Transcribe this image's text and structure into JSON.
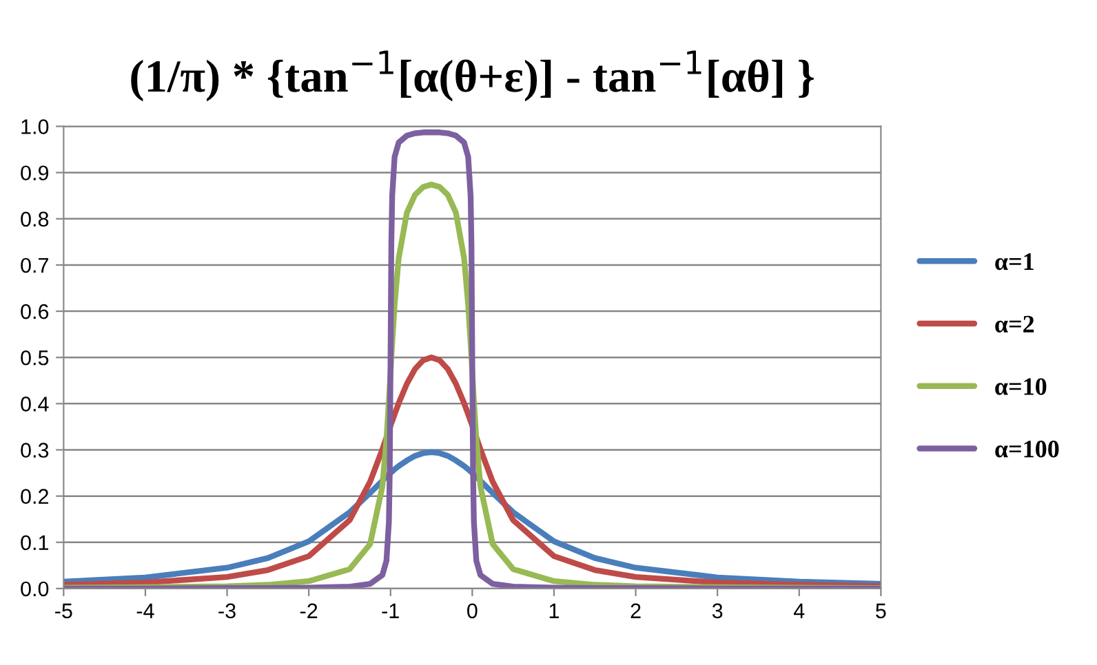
{
  "chart_data": {
    "type": "line",
    "title": "(1/π) * {tan$^{−1}$[α(θ+ε)] - tan$^{−1}$[αθ] }",
    "x": [
      -5,
      -4,
      -3,
      -2.5,
      -2,
      -1.5,
      -1.25,
      -1.1,
      -1.05,
      -1.02,
      -1.01,
      -1,
      -0.99,
      -0.98,
      -0.95,
      -0.9,
      -0.8,
      -0.7,
      -0.6,
      -0.5,
      -0.4,
      -0.3,
      -0.2,
      -0.1,
      -0.05,
      -0.02,
      -0.01,
      0,
      0.01,
      0.02,
      0.05,
      0.1,
      0.25,
      0.5,
      1,
      1.5,
      2,
      3,
      4,
      5
    ],
    "series": [
      {
        "name": "α=1",
        "color": "#4a7ebb",
        "values": [
          0.015,
          0.024,
          0.045,
          0.066,
          0.102,
          0.165,
          0.207,
          0.233,
          0.242,
          0.247,
          0.248,
          0.25,
          0.252,
          0.253,
          0.258,
          0.265,
          0.277,
          0.287,
          0.293,
          0.295,
          0.293,
          0.287,
          0.277,
          0.265,
          0.258,
          0.253,
          0.252,
          0.25,
          0.248,
          0.247,
          0.242,
          0.233,
          0.207,
          0.165,
          0.102,
          0.066,
          0.045,
          0.024,
          0.015,
          0.01
        ]
      },
      {
        "name": "α=2",
        "color": "#be4b48",
        "values": [
          0.008,
          0.013,
          0.025,
          0.04,
          0.07,
          0.148,
          0.231,
          0.301,
          0.327,
          0.342,
          0.347,
          0.352,
          0.358,
          0.362,
          0.377,
          0.401,
          0.443,
          0.475,
          0.494,
          0.5,
          0.494,
          0.475,
          0.443,
          0.401,
          0.377,
          0.362,
          0.358,
          0.352,
          0.347,
          0.342,
          0.327,
          0.301,
          0.231,
          0.148,
          0.07,
          0.04,
          0.025,
          0.013,
          0.008,
          0.005
        ]
      },
      {
        "name": "α=10",
        "color": "#98b954",
        "values": [
          0.002,
          0.003,
          0.005,
          0.008,
          0.016,
          0.042,
          0.096,
          0.221,
          0.322,
          0.406,
          0.437,
          0.468,
          0.5,
          0.53,
          0.614,
          0.715,
          0.813,
          0.852,
          0.869,
          0.874,
          0.869,
          0.852,
          0.813,
          0.715,
          0.614,
          0.53,
          0.5,
          0.468,
          0.437,
          0.406,
          0.322,
          0.221,
          0.096,
          0.042,
          0.016,
          0.008,
          0.005,
          0.003,
          0.002,
          0.001
        ]
      },
      {
        "name": "α=100",
        "color": "#7d60a0",
        "values": [
          0.0,
          0.0,
          0.001,
          0.001,
          0.002,
          0.004,
          0.01,
          0.029,
          0.06,
          0.144,
          0.247,
          0.497,
          0.747,
          0.849,
          0.934,
          0.965,
          0.98,
          0.985,
          0.987,
          0.987,
          0.987,
          0.985,
          0.98,
          0.965,
          0.934,
          0.849,
          0.747,
          0.497,
          0.247,
          0.144,
          0.06,
          0.029,
          0.01,
          0.004,
          0.002,
          0.001,
          0.001,
          0.0,
          0.0,
          0.0
        ]
      }
    ],
    "xlim": [
      -5,
      5
    ],
    "xticks": [
      -5,
      -4,
      -3,
      -2,
      -1,
      0,
      1,
      2,
      3,
      4,
      5
    ],
    "ylim": [
      0,
      1
    ],
    "yticks": [
      {
        "value": 0,
        "label": "0.0"
      },
      {
        "value": 0.1,
        "label": "0.1"
      },
      {
        "value": 0.2,
        "label": "0.2"
      },
      {
        "value": 0.3,
        "label": "0.3"
      },
      {
        "value": 0.4,
        "label": "0.4"
      },
      {
        "value": 0.5,
        "label": "0.5"
      },
      {
        "value": 0.6,
        "label": "0.6"
      },
      {
        "value": 0.7,
        "label": "0.7"
      },
      {
        "value": 0.8,
        "label": "0.8"
      },
      {
        "value": 0.9,
        "label": "0.9"
      },
      {
        "value": 1,
        "label": "1.0"
      }
    ],
    "grid": "y",
    "legend": "right",
    "line_style": "solid"
  }
}
